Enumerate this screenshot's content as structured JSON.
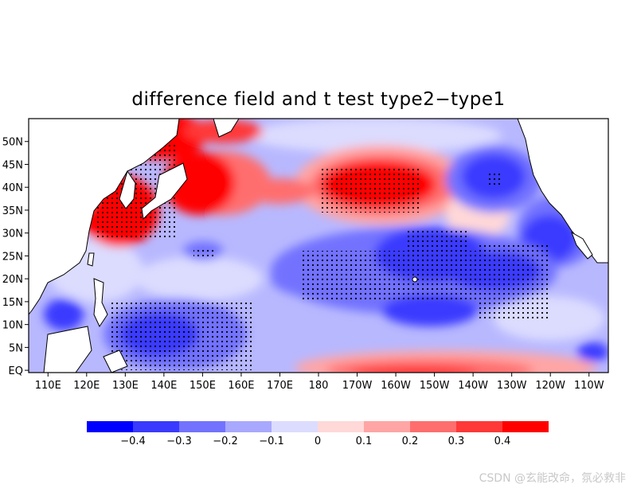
{
  "title": "difference field and t test type2−type1",
  "map": {
    "region": "North Pacific",
    "lat_ticks": [
      "50N",
      "45N",
      "40N",
      "35N",
      "30N",
      "25N",
      "20N",
      "15N",
      "10N",
      "5N",
      "EQ"
    ],
    "lat_values": [
      50,
      45,
      40,
      35,
      30,
      25,
      20,
      15,
      10,
      5,
      0
    ],
    "lon_ticks": [
      "110E",
      "120E",
      "130E",
      "140E",
      "150E",
      "160E",
      "170E",
      "180",
      "170W",
      "160W",
      "150W",
      "140W",
      "130W",
      "120W",
      "110W"
    ],
    "lon_values": [
      110,
      120,
      130,
      140,
      150,
      160,
      170,
      180,
      190,
      200,
      210,
      220,
      230,
      240,
      250
    ],
    "lon_range": [
      105,
      255
    ],
    "lat_range": [
      -0.5,
      55
    ],
    "stipple_meaning": "significant by t test"
  },
  "colorbar": {
    "labels": [
      "−0.4",
      "−0.3",
      "−0.2",
      "−0.1",
      "0",
      "0.1",
      "0.2",
      "0.3",
      "0.4"
    ],
    "colors": [
      "#0000ff",
      "#3a3aff",
      "#7272ff",
      "#a8a8ff",
      "#dcdcff",
      "#ffd8d8",
      "#ffa5a5",
      "#ff6e6e",
      "#ff3838",
      "#ff0000"
    ]
  },
  "watermark": "CSDN @玄能改命，氛必救非"
}
